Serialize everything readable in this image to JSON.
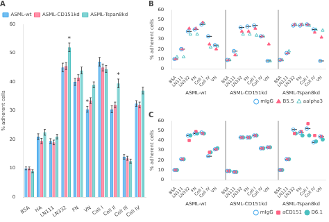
{
  "chart_data": [
    {
      "type": "bar",
      "title": "A",
      "ylabel": "% adherent cells",
      "categories": [
        "BSA",
        "HA",
        "LN111",
        "LN332",
        "FN",
        "VN",
        "Coll I",
        "Coll II",
        "Coll III",
        "Coll IV"
      ],
      "series": [
        {
          "name": "ASML-wt",
          "values": [
            10.0,
            21.0,
            19.5,
            45.0,
            40.0,
            30.5,
            47.0,
            30.5,
            14.0,
            32.5
          ],
          "errors": [
            0.5,
            1.0,
            0.8,
            1.5,
            1.2,
            1.0,
            1.5,
            1.2,
            0.8,
            1.0
          ]
        },
        {
          "name": "ASML-CD151kd",
          "values": [
            10.0,
            19.5,
            19.0,
            45.5,
            41.5,
            33.5,
            45.0,
            32.0,
            13.5,
            32.0
          ],
          "errors": [
            0.5,
            0.9,
            0.8,
            1.2,
            1.0,
            1.0,
            1.2,
            1.0,
            0.7,
            1.0
          ]
        },
        {
          "name": "ASML-Tspan8kd",
          "values": [
            9.0,
            22.5,
            21.0,
            52.0,
            44.0,
            39.0,
            44.5,
            39.5,
            12.5,
            37.0
          ],
          "errors": [
            0.5,
            1.0,
            0.8,
            1.5,
            1.2,
            1.0,
            1.2,
            1.5,
            0.7,
            1.2
          ]
        }
      ],
      "annotations": [
        {
          "text": "*",
          "series": "ASML-Tspan8kd",
          "category": "LN332"
        },
        {
          "text": "*",
          "series": "ASML-Tspan8kd",
          "category": "Coll II"
        },
        {
          "text": "*",
          "series": "ASML-wt",
          "category": "VN"
        }
      ],
      "ylim": [
        0,
        60
      ],
      "yticks": [
        0,
        10,
        20,
        30,
        40,
        50,
        60
      ],
      "grid": false,
      "legend": "upper left"
    },
    {
      "type": "scatter",
      "title": "B",
      "ylabel": "% adherent cells",
      "groups": [
        "ASML-wt",
        "ASML-CD151kd",
        "ASML-Tspan8kd"
      ],
      "categories": [
        "BSA",
        "LN111",
        "LN332",
        "FN",
        "Coll I",
        "Coll IV",
        "VN",
        "BSA",
        "LN111",
        "LN332",
        "FN",
        "Coll I",
        "Coll IV",
        "VN",
        "BSA",
        "LN111",
        "LN332",
        "FN",
        "Coll I",
        "Coll IV",
        "VN"
      ],
      "series": [
        {
          "name": "mIgG",
          "marker": "circle_open",
          "values": [
            10,
            20,
            38,
            40,
            45,
            33,
            24,
            9,
            18,
            42,
            43,
            44,
            33,
            8,
            9,
            16,
            44,
            44,
            45,
            40,
            8
          ]
        },
        {
          "name": "B5.5",
          "marker": "triangle",
          "values": [
            10,
            20,
            41,
            41,
            47,
            25,
            20,
            9,
            14,
            38,
            38,
            41,
            33,
            25,
            9,
            16,
            45,
            45,
            45,
            37,
            32
          ]
        },
        {
          "name": "aalpha3",
          "marker": "triangle_open",
          "values": [
            12,
            12,
            35,
            35,
            46,
            22,
            23,
            9,
            14,
            35,
            35,
            34,
            33,
            8,
            9,
            18,
            45,
            45,
            44,
            40,
            39
          ]
        }
      ],
      "ylim": [
        0,
        60
      ],
      "yticks": [
        0,
        10,
        20,
        30,
        40,
        50,
        60
      ],
      "grid": false,
      "legend": "lower right"
    },
    {
      "type": "scatter",
      "title": "C",
      "ylabel": "% adherent cells",
      "groups": [
        "ASML-wt",
        "ASML-CD151kd",
        "ASML-Tspan8kd"
      ],
      "categories": [
        "BSA",
        "LN111",
        "LN332",
        "FN",
        "Coll I",
        "Coll IV",
        "VN",
        "BSA",
        "LN111",
        "LN332",
        "FN",
        "Coll I",
        "Coll IV",
        "VN",
        "BSA",
        "LN111",
        "LN332",
        "FN",
        "Coll I",
        "Coll IV",
        "VN"
      ],
      "series": [
        {
          "name": "mIgG",
          "marker": "circle_open",
          "values": [
            10,
            21,
            45,
            47,
            48,
            24,
            31,
            9,
            8,
            43,
            43,
            45,
            32,
            33,
            10,
            21,
            51,
            48,
            52,
            38,
            44
          ]
        },
        {
          "name": "aCD151",
          "marker": "square",
          "values": [
            10,
            21,
            40,
            49,
            47,
            28,
            31,
            9,
            8,
            43,
            43,
            45,
            32,
            33,
            10,
            21,
            47,
            49,
            57,
            45,
            44
          ]
        },
        {
          "name": "D6.1",
          "marker": "circle",
          "values": [
            10,
            21,
            45,
            47,
            47,
            28,
            32,
            9,
            8,
            43,
            43,
            45,
            32,
            33,
            10,
            21,
            47,
            45,
            45,
            39,
            41
          ]
        }
      ],
      "ylim": [
        0,
        60
      ],
      "yticks": [
        0,
        10,
        20,
        30,
        40,
        50,
        60
      ],
      "grid": false,
      "legend": "lower right"
    }
  ]
}
